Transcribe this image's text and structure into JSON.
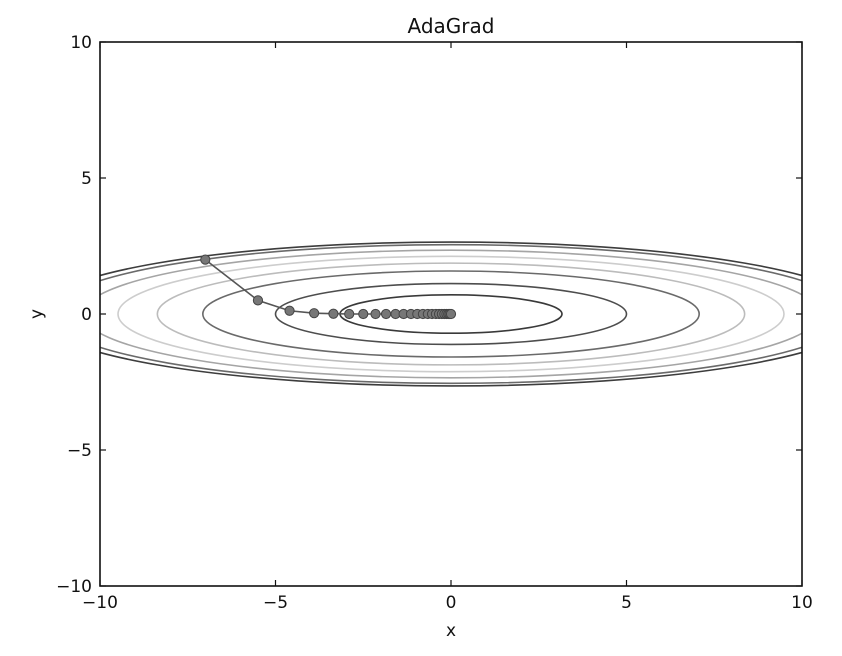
{
  "chart_data": {
    "type": "line",
    "title": "AdaGrad",
    "xlabel": "x",
    "ylabel": "y",
    "xlim": [
      -10,
      10
    ],
    "ylim": [
      -10,
      10
    ],
    "x_ticks": [
      -10,
      -5,
      0,
      5,
      10
    ],
    "y_ticks": [
      -10,
      -5,
      0,
      5,
      10
    ],
    "x_tick_labels": [
      "−10",
      "−5",
      "0",
      "5",
      "10"
    ],
    "y_tick_labels": [
      "−10",
      "−5",
      "0",
      "5",
      "10"
    ],
    "grid": false,
    "contour": {
      "function": "x^2/20 + y^2",
      "levels": [
        {
          "level": 0.5,
          "color": "#3a3a3a"
        },
        {
          "level": 1.25,
          "color": "#4d4d4d"
        },
        {
          "level": 2.5,
          "color": "#6a6a6a"
        },
        {
          "level": 3.5,
          "color": "#bcbcbc"
        },
        {
          "level": 4.5,
          "color": "#cdcdcd"
        },
        {
          "level": 5.5,
          "color": "#a5a5a5"
        },
        {
          "level": 6.5,
          "color": "#6a6a6a"
        },
        {
          "level": 7.0,
          "color": "#3d3d3d"
        }
      ]
    },
    "series": [
      {
        "x": [
          -7.0,
          -5.5,
          -4.6,
          -3.9,
          -3.35,
          -2.9,
          -2.5,
          -2.15,
          -1.85,
          -1.58,
          -1.35,
          -1.14,
          -0.96,
          -0.8,
          -0.66,
          -0.54,
          -0.43,
          -0.34,
          -0.26,
          -0.19,
          -0.13,
          -0.08,
          -0.04,
          0.0
        ],
        "y": [
          2.0,
          0.5,
          0.12,
          0.03,
          0.01,
          0.0,
          0.0,
          0.0,
          0.0,
          0.0,
          0.0,
          0.0,
          0.0,
          0.0,
          0.0,
          0.0,
          0.0,
          0.0,
          0.0,
          0.0,
          0.0,
          0.0,
          0.0,
          0.0
        ],
        "line_color": "#555555",
        "marker_color": "#777777",
        "marker_edge": "#444444"
      }
    ]
  }
}
